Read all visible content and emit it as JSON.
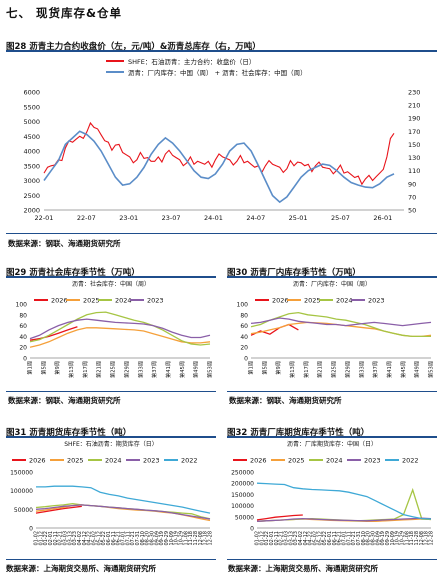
{
  "section_title": "七、  现货库存&仓单",
  "colors": {
    "red": "#e8141b",
    "blue": "#5b8dc8",
    "orange": "#f5a03a",
    "green": "#a6c544",
    "purple": "#8a5fa8",
    "cyan": "#3fa9d6",
    "rule": "#1f4e8c"
  },
  "figures": [
    {
      "title": "图28  沥青主力合约收盘价（左，元/吨）&沥青总库存（右，万吨）",
      "source": "数据来源：钢联、海通期货研究所"
    },
    {
      "title": "图29  沥青社会库存季节性（万吨）",
      "source": "数据来源：钢联、海通期货研究所"
    },
    {
      "title": "图30  沥青厂内库存季节性（万吨）",
      "source": "数据来源：钢联、海通期货研究所"
    },
    {
      "title": "图31  沥青期货库存季节性（吨）",
      "source": "数据来源：上海期货交易所、海通期货研究所"
    },
    {
      "title": "图32  沥青厂库期货库存季节性（吨）",
      "source": "数据来源：上海期货交易所、海通期货研究所"
    }
  ],
  "chart_data": [
    {
      "type": "line",
      "legend": [
        "SHFE：石油沥青：主力合约：收盘价（日）",
        "沥青：厂内库存：中国（周） + 沥青：社会库存：中国（周）"
      ],
      "x_ticks": [
        "22-01",
        "22-07",
        "23-01",
        "23-07",
        "24-01",
        "24-07",
        "25-01",
        "25-07",
        "26-01"
      ],
      "ylim_left": [
        2000,
        6000
      ],
      "yticks_left": [
        2000,
        2500,
        3000,
        3500,
        4000,
        4500,
        5000,
        5500,
        6000
      ],
      "ylim_right": [
        50,
        230
      ],
      "yticks_right": [
        50,
        70,
        90,
        110,
        130,
        150,
        170,
        190,
        210,
        230
      ],
      "series": [
        {
          "name": "SHFE：石油沥青：主力合约：收盘价（日）",
          "axis": "left",
          "color": "#e8141b",
          "x": [
            0,
            1,
            2,
            3,
            4,
            5,
            6,
            7,
            8,
            9,
            10,
            11,
            12,
            13,
            14,
            15,
            16,
            17,
            18,
            19,
            20,
            21,
            22,
            23,
            24,
            25,
            26,
            27,
            28,
            29,
            30,
            31,
            32,
            33,
            34,
            35,
            36,
            37,
            38,
            39,
            40,
            41,
            42,
            43,
            44,
            45,
            46,
            47,
            48,
            49
          ],
          "y": [
            3250,
            3500,
            3700,
            4100,
            4300,
            4500,
            4650,
            4800,
            4550,
            4300,
            4200,
            3950,
            3800,
            3700,
            3750,
            3650,
            3800,
            3900,
            3850,
            3700,
            3600,
            3550,
            3600,
            3650,
            3700,
            3800,
            3700,
            3650,
            3600,
            3550,
            3500,
            3500,
            3550,
            3450,
            3400,
            3500,
            3600,
            3550,
            3500,
            3450,
            3400,
            3350,
            3250,
            3200,
            3150,
            3050,
            3000,
            3250,
            3800,
            4600
          ]
        },
        {
          "name": "沥青：厂内库存：中国（周） + 沥青：社会库存：中国（周）",
          "axis": "right",
          "color": "#5b8dc8",
          "x": [
            0,
            1,
            2,
            3,
            4,
            5,
            6,
            7,
            8,
            9,
            10,
            11,
            12,
            13,
            14,
            15,
            16,
            17,
            18,
            19,
            20,
            21,
            22,
            23,
            24,
            25,
            26,
            27,
            28,
            29,
            30,
            31,
            32,
            33,
            34,
            35,
            36,
            37,
            38,
            39,
            40,
            41,
            42,
            43,
            44,
            45,
            46,
            47,
            48,
            49
          ],
          "y": [
            95,
            110,
            125,
            150,
            160,
            170,
            165,
            155,
            140,
            120,
            100,
            88,
            90,
            100,
            115,
            135,
            150,
            160,
            152,
            140,
            125,
            110,
            100,
            98,
            105,
            120,
            140,
            150,
            152,
            140,
            118,
            95,
            72,
            62,
            70,
            85,
            100,
            110,
            115,
            120,
            118,
            110,
            100,
            92,
            88,
            85,
            84,
            90,
            100,
            105
          ]
        }
      ]
    },
    {
      "type": "line",
      "legend_title": "沥青：社会库存：中国（周）",
      "ylim": [
        0,
        100
      ],
      "yticks": [
        0,
        20,
        40,
        60,
        80,
        100
      ],
      "x_ticks": [
        "第1周",
        "第5周",
        "第9周",
        "第13周",
        "第17周",
        "第21周",
        "第25周",
        "第29周",
        "第33周",
        "第37周",
        "第41周",
        "第45周",
        "第49周",
        "第53周"
      ],
      "series": [
        {
          "name": "2026",
          "color": "#e8141b",
          "y": [
            33,
            36,
            40,
            46,
            52,
            58
          ]
        },
        {
          "name": "2025",
          "color": "#f5a03a",
          "y": [
            20,
            24,
            30,
            38,
            46,
            52,
            56,
            56,
            55,
            54,
            53,
            52,
            50,
            45,
            40,
            35,
            30,
            28,
            28,
            30
          ]
        },
        {
          "name": "2024",
          "color": "#a6c544",
          "y": [
            30,
            34,
            42,
            52,
            62,
            72,
            80,
            84,
            85,
            80,
            75,
            70,
            66,
            60,
            52,
            42,
            32,
            26,
            24,
            26
          ]
        },
        {
          "name": "2023",
          "color": "#8a5fa8",
          "y": [
            36,
            42,
            52,
            60,
            66,
            70,
            72,
            70,
            68,
            66,
            65,
            64,
            63,
            60,
            55,
            48,
            42,
            38,
            38,
            42
          ]
        }
      ]
    },
    {
      "type": "line",
      "legend_title": "沥青：厂内库存：中国（周）",
      "ylim": [
        0,
        100
      ],
      "yticks": [
        0,
        20,
        40,
        60,
        80,
        100
      ],
      "x_ticks": [
        "第1周",
        "第5周",
        "第9周",
        "第13周",
        "第17周",
        "第21周",
        "第25周",
        "第29周",
        "第33周",
        "第37周",
        "第41周",
        "第45周",
        "第49周",
        "第53周"
      ],
      "series": [
        {
          "name": "2026",
          "color": "#e8141b",
          "y": [
            42,
            50,
            44,
            56,
            62,
            52
          ]
        },
        {
          "name": "2025",
          "color": "#f5a03a",
          "y": [
            45,
            48,
            52,
            56,
            62,
            64,
            66,
            65,
            64,
            62,
            60,
            58,
            56,
            54,
            50,
            46,
            42,
            40,
            40,
            42
          ]
        },
        {
          "name": "2024",
          "color": "#a6c544",
          "y": [
            58,
            62,
            70,
            76,
            82,
            84,
            80,
            78,
            76,
            72,
            70,
            66,
            62,
            56,
            50,
            46,
            42,
            40,
            40,
            40
          ]
        },
        {
          "name": "2023",
          "color": "#8a5fa8",
          "y": [
            64,
            66,
            70,
            74,
            72,
            68,
            66,
            64,
            62,
            62,
            60,
            62,
            64,
            66,
            64,
            62,
            60,
            62,
            64,
            66
          ]
        }
      ]
    },
    {
      "type": "line",
      "legend_title": "SHFE：石油沥青：期货库存（日）",
      "ylim": [
        0,
        150000
      ],
      "yticks": [
        0,
        50000,
        100000,
        150000
      ],
      "x_ticks": [
        "01-02",
        "01-12",
        "01-22",
        "02-01",
        "02-11",
        "02-21",
        "03-03",
        "03-13",
        "03-23",
        "04-02",
        "04-12",
        "04-22",
        "05-02",
        "05-12",
        "05-22",
        "06-01",
        "06-11",
        "06-21",
        "07-01",
        "07-11",
        "07-21",
        "07-31",
        "08-10",
        "08-20",
        "08-30",
        "09-09",
        "09-19",
        "09-29",
        "10-09",
        "10-19",
        "10-29",
        "11-08",
        "11-18",
        "11-28",
        "12-08",
        "12-18",
        "12-28"
      ],
      "series": [
        {
          "name": "2026",
          "color": "#e8141b",
          "y": [
            40000,
            44000,
            48000,
            52000,
            55000,
            58000
          ]
        },
        {
          "name": "2025",
          "color": "#f5a03a",
          "y": [
            45000,
            48000,
            52000,
            55000,
            60000,
            62000,
            60000,
            58000,
            55000,
            52000,
            50000,
            48000,
            47000,
            45000,
            42000,
            40000,
            35000,
            30000,
            25000,
            20000
          ]
        },
        {
          "name": "2024",
          "color": "#a6c544",
          "y": [
            55000,
            57000,
            60000,
            62000,
            65000,
            62000,
            60000,
            58000,
            56000,
            54000,
            52000,
            50000,
            48000,
            46000,
            44000,
            42000,
            40000,
            38000,
            30000,
            25000
          ]
        },
        {
          "name": "2023",
          "color": "#8a5fa8",
          "y": [
            50000,
            52000,
            55000,
            58000,
            60000,
            62000,
            60000,
            58000,
            56000,
            54000,
            52000,
            50000,
            48000,
            46000,
            44000,
            40000,
            36000,
            32000,
            28000,
            24000
          ]
        },
        {
          "name": "2022",
          "color": "#3fa9d6",
          "y": [
            110000,
            110000,
            112000,
            112000,
            112000,
            110000,
            108000,
            96000,
            90000,
            86000,
            80000,
            76000,
            72000,
            68000,
            64000,
            60000,
            56000,
            50000,
            45000,
            40000
          ]
        }
      ]
    },
    {
      "type": "line",
      "legend_title": "沥青：厂库期货库存：中国（日）",
      "ylim": [
        0,
        250000
      ],
      "yticks": [
        0,
        50000,
        100000,
        150000,
        200000,
        250000
      ],
      "x_ticks": [
        "01-02",
        "01-12",
        "01-22",
        "02-01",
        "02-11",
        "02-21",
        "03-03",
        "03-13",
        "03-23",
        "04-02",
        "04-12",
        "04-22",
        "05-02",
        "05-12",
        "05-22",
        "06-01",
        "06-11",
        "06-21",
        "07-01",
        "07-11",
        "07-21",
        "07-31",
        "08-10",
        "08-20",
        "08-30",
        "09-09",
        "09-19",
        "09-29",
        "10-09",
        "10-19",
        "10-29",
        "11-08",
        "11-18",
        "11-28",
        "12-08",
        "12-18",
        "12-28"
      ],
      "series": [
        {
          "name": "2026",
          "color": "#e8141b",
          "y": [
            36000,
            42000,
            48000,
            52000,
            56000,
            58000
          ]
        },
        {
          "name": "2025",
          "color": "#f5a03a",
          "y": [
            30000,
            32000,
            34000,
            36000,
            38000,
            40000,
            38000,
            36000,
            34000,
            33000,
            32000,
            31000,
            30000,
            30000,
            32000,
            34000,
            36000,
            38000,
            40000,
            38000
          ]
        },
        {
          "name": "2024",
          "color": "#a6c544",
          "y": [
            30000,
            32000,
            34000,
            36000,
            38000,
            40000,
            42000,
            40000,
            38000,
            36000,
            34000,
            32000,
            34000,
            36000,
            38000,
            40000,
            60000,
            170000,
            40000,
            38000
          ]
        },
        {
          "name": "2023",
          "color": "#8a5fa8",
          "y": [
            30000,
            32000,
            34000,
            36000,
            40000,
            42000,
            40000,
            38000,
            36000,
            35000,
            34000,
            33000,
            32000,
            34000,
            36000,
            38000,
            40000,
            42000,
            44000,
            42000
          ]
        },
        {
          "name": "2022",
          "color": "#3fa9d6",
          "y": [
            200000,
            198000,
            196000,
            194000,
            180000,
            175000,
            172000,
            170000,
            168000,
            166000,
            160000,
            150000,
            140000,
            120000,
            100000,
            80000,
            60000,
            50000,
            42000,
            40000
          ]
        }
      ]
    }
  ]
}
